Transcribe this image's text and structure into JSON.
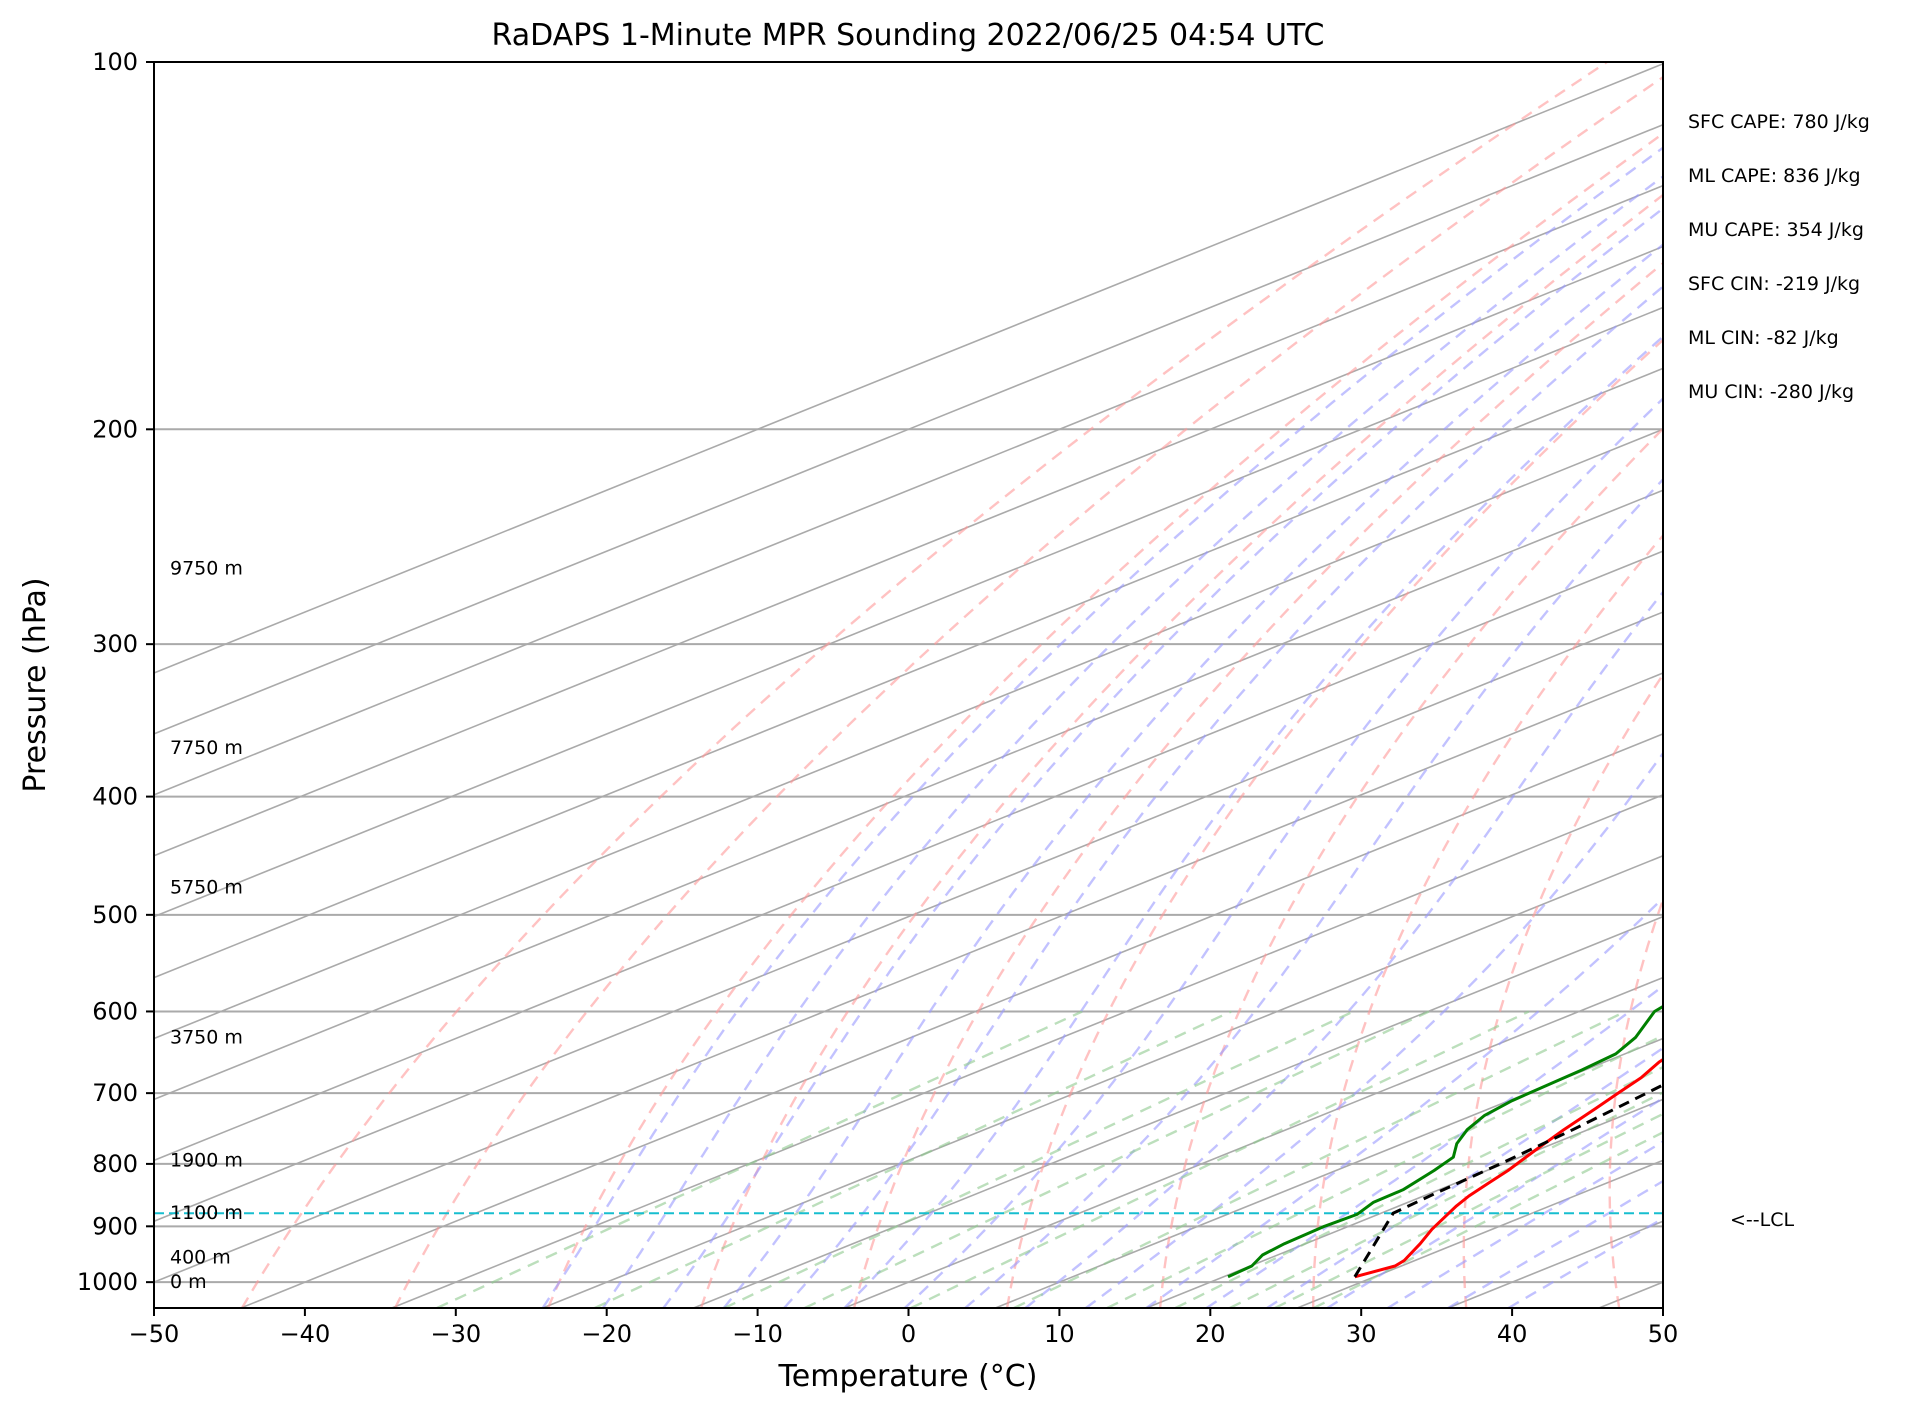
{
  "chart_data": {
    "type": "skew-t",
    "title": "RaDAPS 1-Minute MPR Sounding 2022/06/25 04:54 UTC",
    "xlabel": "Temperature (°C)",
    "ylabel": "Pressure (hPa)",
    "xlim": [
      -50,
      50
    ],
    "ylim": [
      1050,
      100
    ],
    "y_scale": "log",
    "x_ticks": [
      "−50",
      "−40",
      "−30",
      "−20",
      "−10",
      "0",
      "10",
      "20",
      "30",
      "40",
      "50"
    ],
    "y_ticks": [
      100,
      200,
      300,
      400,
      500,
      600,
      700,
      800,
      900,
      1000
    ],
    "grid": true,
    "temperature_color": "#ff0000",
    "dewpoint_color": "#008000",
    "parcel_color": "#000000",
    "lcl_color": "#17becf",
    "dry_adiabat_color": "#ff9999",
    "moist_adiabat_color": "#9999ff",
    "mixing_ratio_color": "#8fc98f",
    "temperature": [
      [
        990,
        28.7
      ],
      [
        970,
        29.6
      ],
      [
        960,
        29.3
      ],
      [
        930,
        27.6
      ],
      [
        905,
        26.0
      ],
      [
        880,
        24.6
      ],
      [
        866,
        23.8
      ],
      [
        850,
        23.0
      ],
      [
        830,
        22.2
      ],
      [
        810,
        21.4
      ],
      [
        780,
        19.9
      ],
      [
        750,
        18.4
      ],
      [
        720,
        17.0
      ],
      [
        700,
        16.0
      ],
      [
        680,
        15.0
      ],
      [
        660,
        13.6
      ],
      [
        640,
        12.6
      ],
      [
        620,
        11.4
      ],
      [
        600,
        10.6
      ],
      [
        580,
        10.2
      ],
      [
        560,
        9.6
      ],
      [
        540,
        9.0
      ],
      [
        520,
        8.0
      ],
      [
        500,
        7.0
      ],
      [
        480,
        6.0
      ],
      [
        460,
        5.0
      ],
      [
        440,
        4.6
      ],
      [
        420,
        3.4
      ],
      [
        400,
        2.2
      ],
      [
        380,
        1.0
      ],
      [
        360,
        -0.2
      ],
      [
        340,
        -1.4
      ],
      [
        320,
        -3.0
      ],
      [
        300,
        -4.6
      ],
      [
        280,
        -6.2
      ],
      [
        260,
        -7.8
      ],
      [
        245,
        -9.0
      ]
    ],
    "dewpoint": [
      [
        990,
        20.3
      ],
      [
        970,
        20.1
      ],
      [
        950,
        19.0
      ],
      [
        930,
        18.6
      ],
      [
        900,
        18.4
      ],
      [
        880,
        18.6
      ],
      [
        860,
        17.7
      ],
      [
        840,
        17.6
      ],
      [
        810,
        16.5
      ],
      [
        790,
        15.6
      ],
      [
        770,
        13.6
      ],
      [
        750,
        12.0
      ],
      [
        730,
        10.8
      ],
      [
        710,
        10.2
      ],
      [
        690,
        10.0
      ],
      [
        670,
        9.8
      ],
      [
        650,
        9.4
      ],
      [
        630,
        8.0
      ],
      [
        600,
        5.0
      ],
      [
        570,
        3.6
      ],
      [
        540,
        2.8
      ],
      [
        510,
        2.4
      ],
      [
        490,
        1.0
      ],
      [
        470,
        -0.4
      ],
      [
        440,
        -4.8
      ],
      [
        420,
        -7.5
      ],
      [
        400,
        -9.5
      ],
      [
        380,
        -10.5
      ],
      [
        360,
        -13.0
      ],
      [
        340,
        -14.5
      ],
      [
        320,
        -16.5
      ],
      [
        300,
        -18.6
      ],
      [
        290,
        -19.5
      ],
      [
        275,
        -23.5
      ],
      [
        265,
        -26.0
      ],
      [
        258,
        -27.7
      ]
    ],
    "parcel": [
      [
        990,
        28.7
      ],
      [
        878,
        20.8
      ],
      [
        850,
        20.4
      ],
      [
        800,
        19.8
      ],
      [
        750,
        19.0
      ],
      [
        700,
        17.9
      ],
      [
        650,
        16.6
      ],
      [
        600,
        15.1
      ],
      [
        550,
        13.3
      ],
      [
        500,
        11.3
      ],
      [
        450,
        8.8
      ],
      [
        400,
        5.9
      ],
      [
        350,
        2.2
      ],
      [
        300,
        -2.6
      ],
      [
        260,
        -6.8
      ],
      [
        250,
        -8.2
      ]
    ],
    "lcl_pressure": 878,
    "lcl_label": "<--LCL",
    "height_labels": [
      {
        "p": 260,
        "text": "9750 m"
      },
      {
        "p": 365,
        "text": "7750 m"
      },
      {
        "p": 475,
        "text": "5750 m"
      },
      {
        "p": 630,
        "text": "3750 m"
      },
      {
        "p": 795,
        "text": "1900 m"
      },
      {
        "p": 878,
        "text": "1100 m"
      },
      {
        "p": 955,
        "text": "400 m"
      },
      {
        "p": 1000,
        "text": "0 m"
      }
    ],
    "indices": [
      "SFC CAPE: 780 J/kg",
      "ML CAPE: 836 J/kg",
      "MU CAPE: 354 J/kg",
      "SFC CIN: -219 J/kg",
      "ML CIN: -82 J/kg",
      "MU CIN: -280 J/kg"
    ]
  }
}
